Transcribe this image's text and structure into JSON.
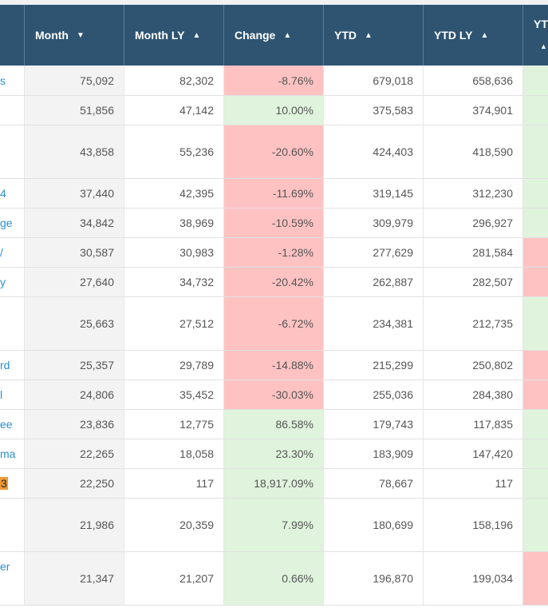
{
  "colors": {
    "header_bg": "#2e5472",
    "negative_bg": "#ffc2c2",
    "positive_bg": "#e0f3dd",
    "link_text": "#2a8fd0",
    "badge_bg": "#f09a38"
  },
  "header": {
    "columns": [
      {
        "label": "",
        "arrow": ""
      },
      {
        "label": "Month",
        "arrow": "▼"
      },
      {
        "label": "Month LY",
        "arrow": "▲"
      },
      {
        "label": "Change",
        "arrow": "▲"
      },
      {
        "label": "YTD",
        "arrow": "▲"
      },
      {
        "label": "YTD LY",
        "arrow": "▲"
      },
      {
        "label": "YT",
        "arrow": "▲"
      }
    ]
  },
  "rows": [
    {
      "name": "s",
      "month": "75,092",
      "month_ly": "82,302",
      "change": "-8.76%",
      "ytd": "679,018",
      "ytd_ly": "658,636",
      "change_status": "negative",
      "ytd_status": "positive"
    },
    {
      "name": "",
      "month": "51,856",
      "month_ly": "47,142",
      "change": "10.00%",
      "ytd": "375,583",
      "ytd_ly": "374,901",
      "change_status": "positive",
      "ytd_status": "positive"
    },
    {
      "name": "",
      "month": "43,858",
      "month_ly": "55,236",
      "change": "-20.60%",
      "ytd": "424,403",
      "ytd_ly": "418,590",
      "change_status": "negative",
      "ytd_status": "positive"
    },
    {
      "name": "4",
      "month": "37,440",
      "month_ly": "42,395",
      "change": "-11.69%",
      "ytd": "319,145",
      "ytd_ly": "312,230",
      "change_status": "negative",
      "ytd_status": "positive"
    },
    {
      "name": "ge",
      "month": "34,842",
      "month_ly": "38,969",
      "change": "-10.59%",
      "ytd": "309,979",
      "ytd_ly": "296,927",
      "change_status": "negative",
      "ytd_status": "positive"
    },
    {
      "name": "/",
      "month": "30,587",
      "month_ly": "30,983",
      "change": "-1.28%",
      "ytd": "277,629",
      "ytd_ly": "281,584",
      "change_status": "negative",
      "ytd_status": "negative"
    },
    {
      "name": "y",
      "month": "27,640",
      "month_ly": "34,732",
      "change": "-20.42%",
      "ytd": "262,887",
      "ytd_ly": "282,507",
      "change_status": "negative",
      "ytd_status": "negative"
    },
    {
      "name": "",
      "month": "25,663",
      "month_ly": "27,512",
      "change": "-6.72%",
      "ytd": "234,381",
      "ytd_ly": "212,735",
      "change_status": "negative",
      "ytd_status": "positive"
    },
    {
      "name": "rd",
      "month": "25,357",
      "month_ly": "29,789",
      "change": "-14.88%",
      "ytd": "215,299",
      "ytd_ly": "250,802",
      "change_status": "negative",
      "ytd_status": "negative"
    },
    {
      "name": "l",
      "month": "24,806",
      "month_ly": "35,452",
      "change": "-30.03%",
      "ytd": "255,036",
      "ytd_ly": "284,380",
      "change_status": "negative",
      "ytd_status": "negative"
    },
    {
      "name": "ee",
      "month": "23,836",
      "month_ly": "12,775",
      "change": "86.58%",
      "ytd": "179,743",
      "ytd_ly": "117,835",
      "change_status": "positive",
      "ytd_status": "positive"
    },
    {
      "name": "ma",
      "month": "22,265",
      "month_ly": "18,058",
      "change": "23.30%",
      "ytd": "183,909",
      "ytd_ly": "147,420",
      "change_status": "positive",
      "ytd_status": "positive"
    },
    {
      "name": "3",
      "month": "22,250",
      "month_ly": "117",
      "change": "18,917.09%",
      "ytd": "78,667",
      "ytd_ly": "117",
      "change_status": "positive",
      "ytd_status": "positive"
    },
    {
      "name": "",
      "month": "21,986",
      "month_ly": "20,359",
      "change": "7.99%",
      "ytd": "180,699",
      "ytd_ly": "158,196",
      "change_status": "positive",
      "ytd_status": "positive"
    },
    {
      "name": "er",
      "month": "21,347",
      "month_ly": "21,207",
      "change": "0.66%",
      "ytd": "196,870",
      "ytd_ly": "199,034",
      "change_status": "positive",
      "ytd_status": "negative"
    }
  ]
}
